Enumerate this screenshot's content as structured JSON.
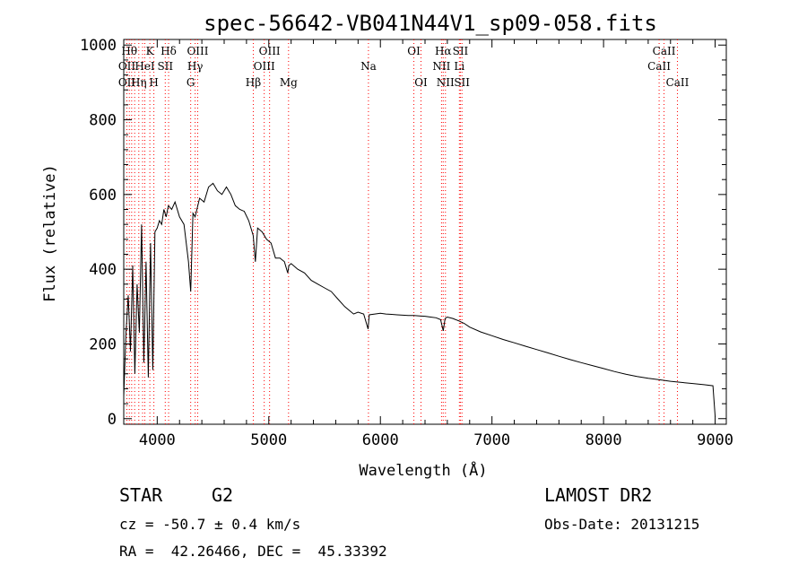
{
  "chart_data": {
    "type": "line",
    "title": "spec-56642-VB041N44V1_sp09-058.fits",
    "xlabel": "Wavelength (Å)",
    "ylabel": "Flux (relative)",
    "xlim": [
      3700,
      9100
    ],
    "ylim": [
      -15,
      1015
    ],
    "xticks": [
      4000,
      5000,
      6000,
      7000,
      8000,
      9000
    ],
    "yticks": [
      0,
      200,
      400,
      600,
      800,
      1000
    ],
    "grid": false,
    "line_color": "#000000",
    "marker_color": "#ff0000",
    "series": [
      {
        "x": [
          3700,
          3720,
          3740,
          3760,
          3780,
          3800,
          3820,
          3840,
          3860,
          3880,
          3900,
          3920,
          3940,
          3960,
          3980,
          4000,
          4020,
          4040,
          4060,
          4080,
          4100,
          4130,
          4160,
          4200,
          4240,
          4280,
          4300,
          4320,
          4340,
          4380,
          4420,
          4460,
          4500,
          4540,
          4580,
          4620,
          4660,
          4700,
          4740,
          4780,
          4820,
          4860,
          4880,
          4900,
          4940,
          4980,
          5020,
          5060,
          5100,
          5140,
          5170,
          5180,
          5200,
          5260,
          5320,
          5380,
          5440,
          5500,
          5560,
          5620,
          5680,
          5720,
          5760,
          5800,
          5850,
          5890,
          5900,
          5950,
          6000,
          6050,
          6100,
          6150,
          6200,
          6250,
          6300,
          6350,
          6400,
          6450,
          6500,
          6540,
          6563,
          6580,
          6600,
          6650,
          6700,
          6750,
          6800,
          6900,
          7000,
          7100,
          7200,
          7300,
          7400,
          7500,
          7600,
          7700,
          7800,
          7900,
          8000,
          8100,
          8200,
          8300,
          8400,
          8500,
          8600,
          8700,
          8800,
          8900,
          8980,
          9000
        ],
        "y": [
          60,
          230,
          330,
          180,
          410,
          120,
          360,
          230,
          520,
          150,
          420,
          110,
          470,
          130,
          500,
          510,
          530,
          520,
          560,
          540,
          570,
          560,
          580,
          540,
          520,
          420,
          340,
          550,
          540,
          590,
          580,
          620,
          630,
          610,
          600,
          620,
          600,
          570,
          560,
          555,
          530,
          490,
          420,
          510,
          500,
          480,
          470,
          430,
          430,
          420,
          390,
          410,
          415,
          400,
          390,
          370,
          360,
          350,
          340,
          320,
          300,
          290,
          280,
          285,
          280,
          240,
          278,
          280,
          282,
          280,
          279,
          278,
          277,
          276,
          276,
          275,
          274,
          272,
          270,
          265,
          235,
          268,
          272,
          268,
          262,
          255,
          245,
          232,
          222,
          212,
          203,
          194,
          185,
          176,
          167,
          158,
          150,
          142,
          134,
          126,
          119,
          113,
          108,
          104,
          100,
          97,
          94,
          91,
          88,
          5
        ]
      }
    ],
    "lines": [
      {
        "wave": 3728,
        "labels": [
          "",
          "OII",
          "OII"
        ]
      },
      {
        "wave": 3750,
        "labels": [
          "Hθ",
          "",
          ""
        ]
      },
      {
        "wave": 3771,
        "labels": [
          "",
          "",
          ""
        ]
      },
      {
        "wave": 3798,
        "labels": [
          "",
          "",
          ""
        ]
      },
      {
        "wave": 3835,
        "labels": [
          "",
          "",
          "Hη"
        ]
      },
      {
        "wave": 3869,
        "labels": [
          "",
          "",
          ""
        ]
      },
      {
        "wave": 3889,
        "labels": [
          "",
          "HeI",
          ""
        ]
      },
      {
        "wave": 3934,
        "labels": [
          "K",
          "",
          ""
        ]
      },
      {
        "wave": 3970,
        "labels": [
          "",
          "",
          "H"
        ]
      },
      {
        "wave": 4072,
        "labels": [
          "",
          "SII",
          ""
        ]
      },
      {
        "wave": 4102,
        "labels": [
          "Hδ",
          "",
          ""
        ]
      },
      {
        "wave": 4300,
        "labels": [
          "",
          "",
          "G"
        ]
      },
      {
        "wave": 4340,
        "labels": [
          "",
          "Hγ",
          ""
        ]
      },
      {
        "wave": 4363,
        "labels": [
          "OIII",
          "",
          ""
        ]
      },
      {
        "wave": 4861,
        "labels": [
          "",
          "",
          "Hβ"
        ]
      },
      {
        "wave": 4959,
        "labels": [
          "",
          "OIII",
          ""
        ]
      },
      {
        "wave": 5007,
        "labels": [
          "OIII",
          "",
          ""
        ]
      },
      {
        "wave": 5177,
        "labels": [
          "",
          "",
          "Mg"
        ]
      },
      {
        "wave": 5893,
        "labels": [
          "",
          "Na",
          ""
        ]
      },
      {
        "wave": 6300,
        "labels": [
          "OI",
          "",
          ""
        ]
      },
      {
        "wave": 6364,
        "labels": [
          "",
          "",
          "OI"
        ]
      },
      {
        "wave": 6548,
        "labels": [
          "",
          "NII",
          ""
        ]
      },
      {
        "wave": 6563,
        "labels": [
          "Hα",
          "",
          ""
        ]
      },
      {
        "wave": 6583,
        "labels": [
          "",
          "",
          "NII"
        ]
      },
      {
        "wave": 6708,
        "labels": [
          "",
          "Li",
          ""
        ]
      },
      {
        "wave": 6717,
        "labels": [
          "SII",
          "",
          ""
        ]
      },
      {
        "wave": 6731,
        "labels": [
          "",
          "",
          "SII"
        ]
      },
      {
        "wave": 8498,
        "labels": [
          "",
          "CaII",
          ""
        ]
      },
      {
        "wave": 8542,
        "labels": [
          "CaII",
          "",
          ""
        ]
      },
      {
        "wave": 8662,
        "labels": [
          "",
          "",
          "CaII"
        ]
      }
    ]
  },
  "info": {
    "class_label": "STAR",
    "subclass": "G2",
    "survey": "LAMOST DR2",
    "cz": "cz = -50.7 ± 0.4 km/s",
    "obs_date": "Obs-Date: 20131215",
    "coords": "RA =  42.26466, DEC =  45.33392"
  }
}
